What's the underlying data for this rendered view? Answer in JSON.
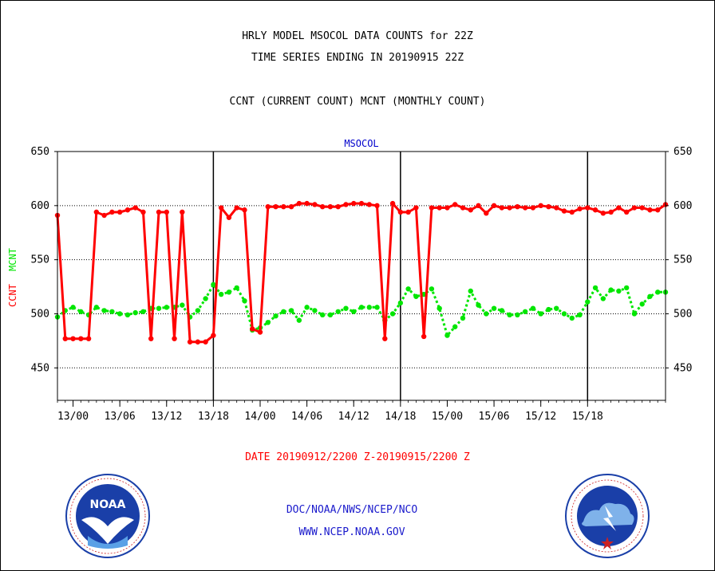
{
  "title_line1": "HRLY MODEL MSOCOL DATA COUNTS for 22Z",
  "title_line2": "TIME SERIES ENDING IN 20190915 22Z",
  "subtitle": "CCNT (CURRENT COUNT) MCNT (MONTHLY COUNT)",
  "date_range": "DATE 20190912/2200 Z-20190915/2200 Z",
  "footer_line1": "DOC/NOAA/NWS/NCEP/NCO",
  "footer_line2": "WWW.NCEP.NOAA.GOV",
  "colors": {
    "ccnt": "#ff0000",
    "mcnt": "#00e600",
    "axis": "#000000",
    "panel_label": "#0000cc"
  },
  "logos": {
    "left": "noaa-logo",
    "right": "national-weather-service-logo"
  },
  "chart_data": {
    "type": "line",
    "panel_label": "MSOCOL",
    "ylabel_left": [
      "CCNT",
      "MCNT"
    ],
    "ylim": [
      420,
      650
    ],
    "yticks": [
      450,
      500,
      550,
      600,
      650
    ],
    "xticks": [
      "13/00",
      "13/06",
      "13/12",
      "13/18",
      "14/00",
      "14/06",
      "14/12",
      "14/18",
      "15/00",
      "15/06",
      "15/12",
      "15/18"
    ],
    "xtick_hours": [
      2,
      8,
      14,
      20,
      26,
      32,
      38,
      44,
      50,
      56,
      62,
      68
    ],
    "day_boundaries_hours": [
      20,
      44,
      68
    ],
    "dotted_grid_values": [
      450,
      500,
      550,
      600
    ],
    "x_start": "20190912/2200",
    "x_end": "20190915/2200",
    "series": [
      {
        "name": "CCNT",
        "color": "#ff0000",
        "values": [
          591,
          477,
          477,
          477,
          477,
          594,
          591,
          594,
          594,
          596,
          598,
          594,
          477,
          594,
          594,
          477,
          594,
          474,
          474,
          474,
          480,
          598,
          589,
          598,
          596,
          486,
          483,
          599,
          599,
          599,
          599,
          602,
          602,
          601,
          599,
          599,
          599,
          601,
          602,
          602,
          601,
          600,
          477,
          602,
          594,
          594,
          598,
          479,
          598,
          598,
          598,
          601,
          598,
          596,
          600,
          593,
          600,
          598,
          598,
          599,
          598,
          598,
          600,
          599,
          598,
          595,
          594,
          597,
          598,
          596,
          593,
          594,
          598,
          594,
          598,
          598,
          596,
          596,
          601
        ]
      },
      {
        "name": "MCNT",
        "color": "#00e600",
        "values": [
          497,
          503,
          506,
          502,
          499,
          506,
          503,
          502,
          500,
          499,
          501,
          502,
          505,
          505,
          506,
          506,
          508,
          497,
          503,
          514,
          527,
          518,
          520,
          524,
          512,
          485,
          487,
          492,
          498,
          502,
          503,
          494,
          506,
          503,
          499,
          499,
          502,
          505,
          502,
          506,
          506,
          506,
          494,
          500,
          510,
          523,
          516,
          518,
          523,
          505,
          480,
          488,
          496,
          521,
          508,
          500,
          505,
          503,
          499,
          499,
          502,
          505,
          500,
          504,
          505,
          500,
          496,
          499,
          511,
          524,
          514,
          522,
          521,
          524,
          500,
          509,
          516,
          520,
          520
        ]
      }
    ]
  }
}
